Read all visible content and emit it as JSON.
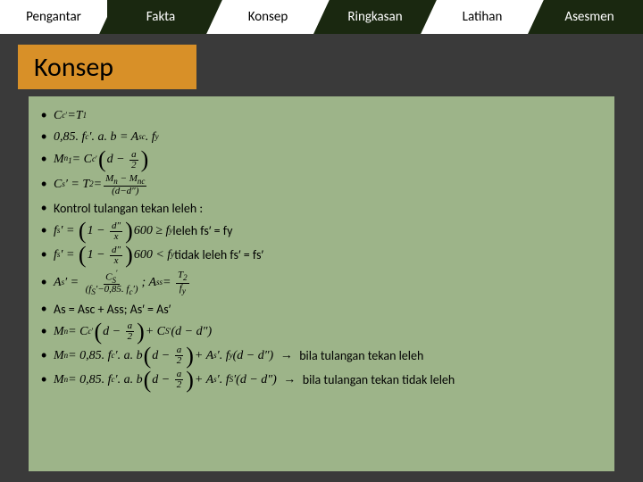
{
  "nav": {
    "tabs": [
      {
        "label": "Pengantar",
        "style": "white"
      },
      {
        "label": "Fakta",
        "style": "dark"
      },
      {
        "label": "Konsep",
        "style": "white"
      },
      {
        "label": "Ringkasan",
        "style": "dark"
      },
      {
        "label": "Latihan",
        "style": "white"
      },
      {
        "label": "Asesmen",
        "style": "dark"
      }
    ]
  },
  "title": "Konsep",
  "colors": {
    "nav_bg": "#1a2810",
    "tab_white": "#ffffff",
    "banner": "#d89028",
    "panel": "#9db489",
    "page_bg": "#3a3a3a"
  },
  "formulas": {
    "f1_lhs": "C",
    "f1_sub": "c",
    "f1_rhs": "T",
    "f1_rsub": "1",
    "f2": "0,85. f",
    "f2_sub1": "c",
    "f2_mid": "′. a. b = A",
    "f2_sub2": "sc",
    "f2_end": ". f",
    "f2_sub3": "y",
    "f3_lhs": "M",
    "f3_sub1": "n",
    "f3_subnum": "1",
    "f3_eq": " = C",
    "f3_sub2": "c",
    "f3_par1": "d −",
    "f3_frac_n": "a",
    "f3_frac_d": "2",
    "f4_lhs": "C",
    "f4_sub1": "s",
    "f4_eq": "′ = T",
    "f4_sub2": "2",
    "f4_frac_n": "M",
    "f4_fn_sub": "n",
    "f4_fn_mid": " − M",
    "f4_fn_sub2": "nc",
    "f4_fd": "(d−d″)",
    "f5_text": "Kontrol tulangan tekan leleh :",
    "f6_lhs": "f",
    "f6_sub": "s",
    "f6_eq": "′ =",
    "f6_one": "1 −",
    "f6_fn": "d″",
    "f6_fd": "x",
    "f6_mult": " 600 ≥ f",
    "f6_sub2": "y",
    "f6_tail": "leleh fs′ = fy",
    "f7_lhs": "f",
    "f7_sub": "s",
    "f7_eq": "′ =",
    "f7_one": "1 −",
    "f7_fn": "d″",
    "f7_fd": "x",
    "f7_mult": " 600 < f",
    "f7_sub2": "y",
    "f7_tail": "tidak leleh fs′ = fs′",
    "f8_lhs": "A",
    "f8_sub": "s",
    "f8_eq": "′ =",
    "f8_fn": "C",
    "f8_fn_sub": "S",
    "f8_fn_sup": "′",
    "f8_fd": "(f",
    "f8_fd_sub1": "S",
    "f8_fd_mid": "′−0,85. f",
    "f8_fd_sub2": "c",
    "f8_fd_end": "′)",
    "f8_semi": " ;  A",
    "f8_sub2": "ss",
    "f8_eq2": " =",
    "f8_fn2": "T",
    "f8_fn2_sub": "2",
    "f8_fd2": "f",
    "f8_fd2_sub": "y",
    "f9": "As = Asc + Ass; As′ = As′",
    "f10_lhs": "M",
    "f10_sub": "n",
    "f10_eq": " = C",
    "f10_sub2": "c",
    "f10_mid": "d −",
    "f10_fn": "a",
    "f10_fd": "2",
    "f10_plus": " + C",
    "f10_sub3": "S",
    "f10_p2": "(d − d″)",
    "f11_lhs": "M",
    "f11_sub": "n",
    "f11_eq": " = 0,85. f",
    "f11_sub2": "c",
    "f11_mid": "′. a. b",
    "f11_d": "d −",
    "f11_fn": "a",
    "f11_fd": "2",
    "f11_plus": " + A",
    "f11_sub3": "s",
    "f11_fy": "′. f",
    "f11_sub4": "y",
    "f11_p2": "(d − d″)",
    "f11_arrow": "→",
    "f11_tail": "bila tulangan tekan leleh",
    "f12_lhs": "M",
    "f12_sub": "n",
    "f12_eq": " = 0,85. f",
    "f12_sub2": "c",
    "f12_mid": "′. a. b",
    "f12_d": "d −",
    "f12_fn": "a",
    "f12_fd": "2",
    "f12_plus": " + A",
    "f12_sub3": "s",
    "f12_fy": "′. f",
    "f12_sub4": "S",
    "f12_p2": "′(d − d″)",
    "f12_arrow": "→",
    "f12_tail": "bila tulangan tekan tidak leleh"
  }
}
